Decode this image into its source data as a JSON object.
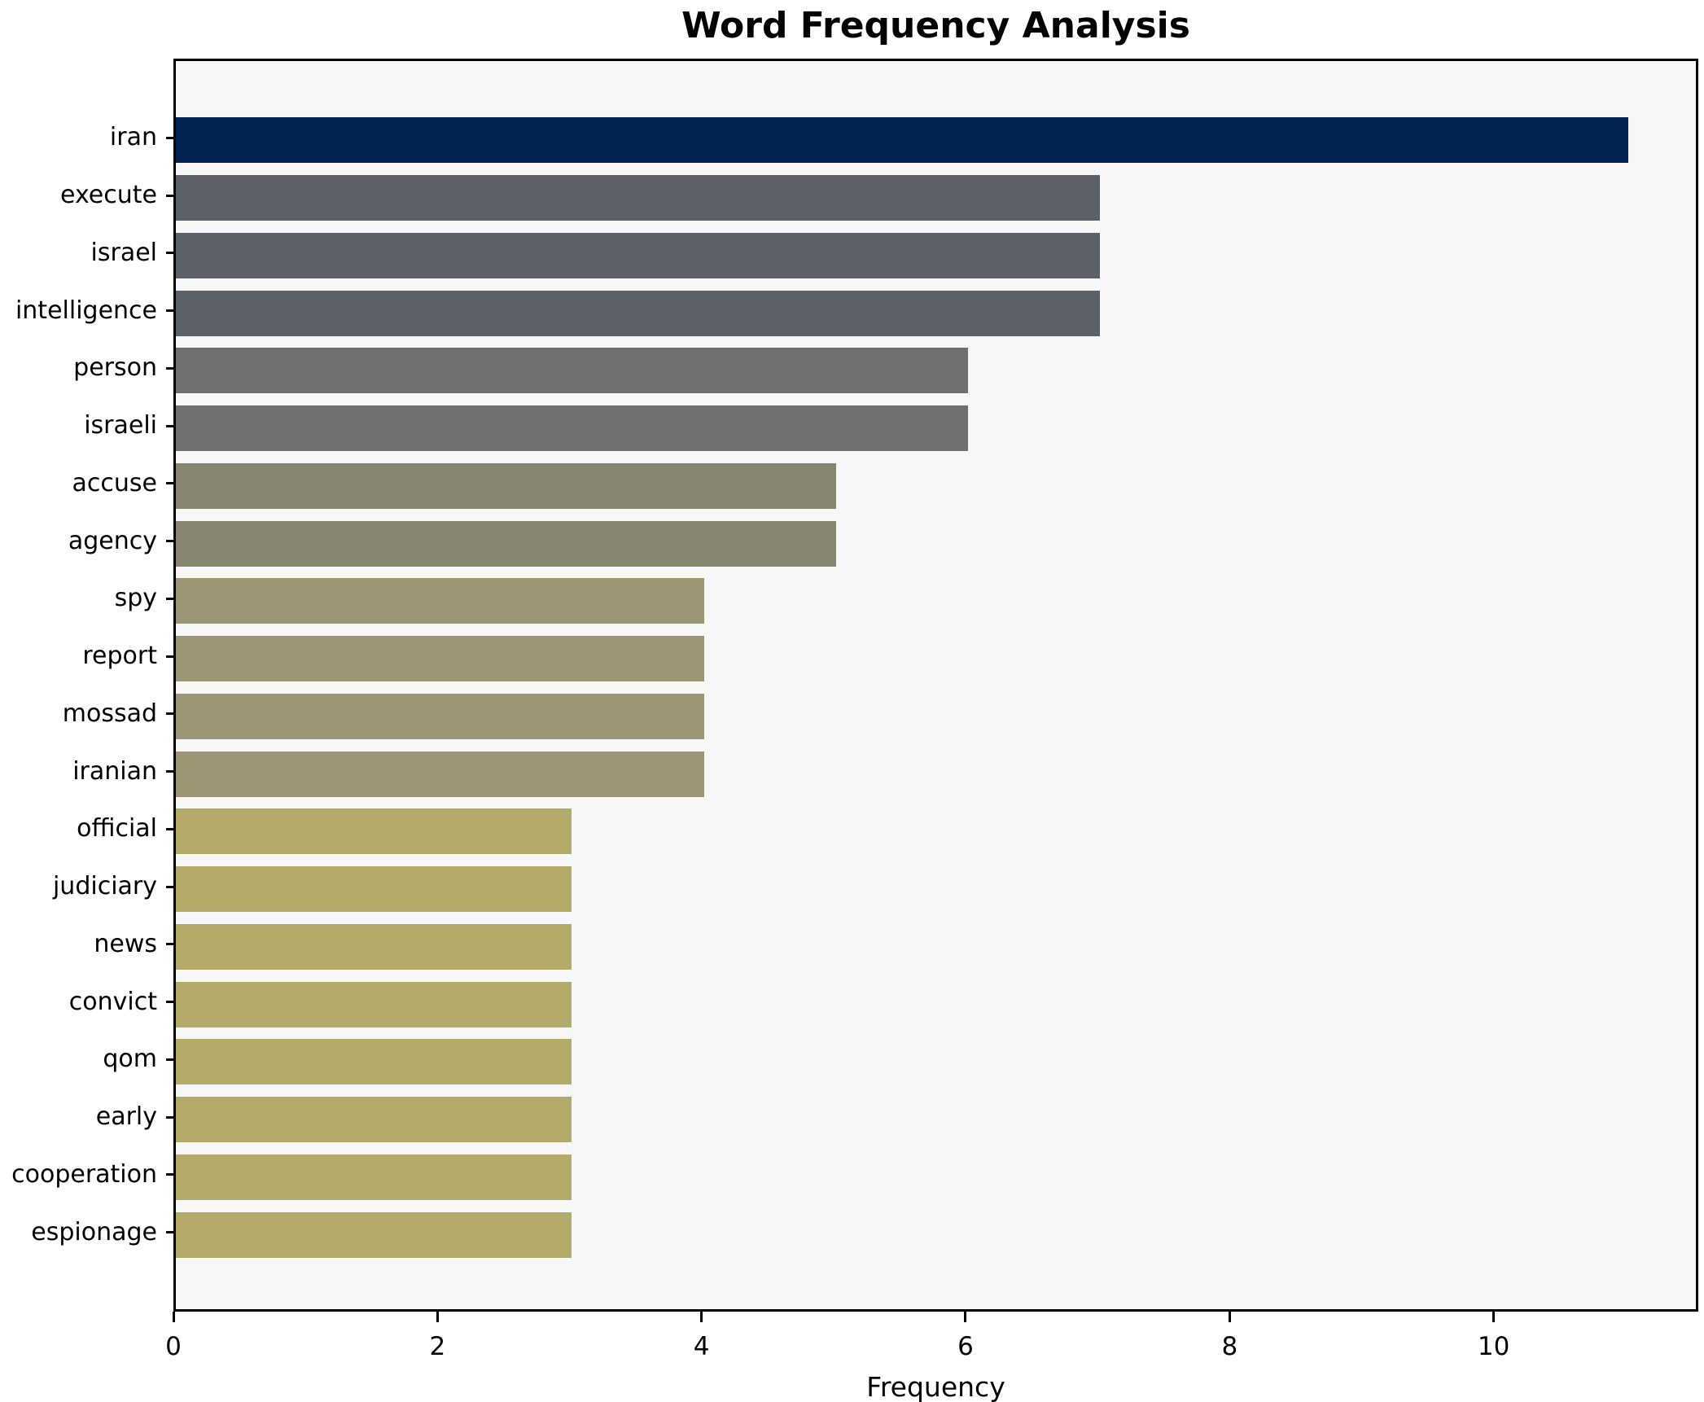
{
  "title": "Word Frequency Analysis",
  "chart_data": {
    "type": "bar",
    "orientation": "horizontal",
    "title": "Word Frequency Analysis",
    "xlabel": "Frequency",
    "ylabel": "",
    "categories": [
      "iran",
      "execute",
      "israel",
      "intelligence",
      "person",
      "israeli",
      "accuse",
      "agency",
      "spy",
      "report",
      "mossad",
      "iranian",
      "official",
      "judiciary",
      "news",
      "convict",
      "qom",
      "early",
      "cooperation",
      "espionage"
    ],
    "values": [
      11,
      7,
      7,
      7,
      6,
      6,
      5,
      5,
      4,
      4,
      4,
      4,
      3,
      3,
      3,
      3,
      3,
      3,
      3,
      3
    ],
    "bar_colors": [
      "#00234f",
      "#5b6069",
      "#5b6069",
      "#5b6069",
      "#6f7071",
      "#6f7071",
      "#87856f",
      "#87856f",
      "#9d9674",
      "#9d9674",
      "#9d9674",
      "#9d9674",
      "#b4aa69",
      "#b4aa69",
      "#b4aa69",
      "#b4aa69",
      "#b4aa69",
      "#b4aa69",
      "#b4aa69",
      "#b4aa69"
    ],
    "xticks": [
      0,
      2,
      4,
      6,
      8,
      10
    ],
    "xlim": [
      0,
      11.55
    ],
    "grid": false,
    "legend": false,
    "plot_background": "#f7f7f7",
    "figure_background": "#ffffff",
    "spine_color": "#000000"
  }
}
